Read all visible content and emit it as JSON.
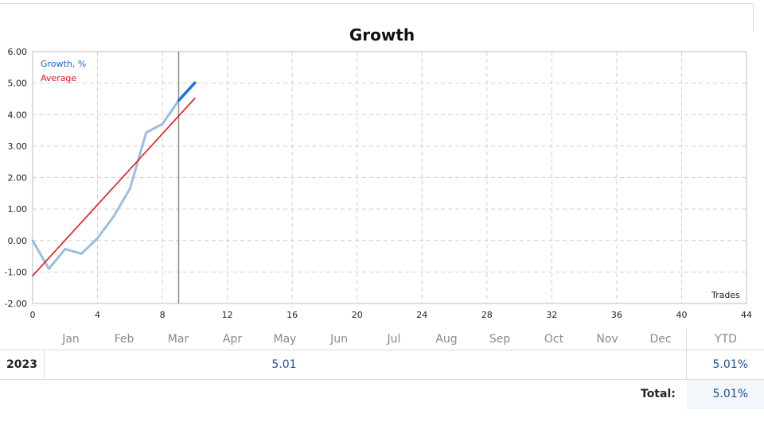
{
  "chart_data": {
    "type": "line",
    "title": "Growth",
    "xlabel": "Trades",
    "ylabel": "",
    "xlim": [
      0,
      44
    ],
    "ylim": [
      -2,
      6
    ],
    "x_ticks": [
      "0",
      "4",
      "8",
      "12",
      "16",
      "20",
      "24",
      "28",
      "32",
      "36",
      "40",
      "44"
    ],
    "y_ticks": [
      "-2.00",
      "-1.00",
      "0.00",
      "1.00",
      "2.00",
      "3.00",
      "4.00",
      "5.00",
      "6.00"
    ],
    "grid": true,
    "legend": "top-left",
    "series": [
      {
        "name": "Growth, %",
        "color": "#9dbde0",
        "x": [
          0,
          1,
          2,
          3,
          4,
          5,
          6,
          7,
          8,
          9
        ],
        "y": [
          0.0,
          -0.9,
          -0.27,
          -0.42,
          0.07,
          0.77,
          1.65,
          3.43,
          3.7,
          4.45
        ]
      },
      {
        "name": "Growth, %",
        "color": "#1a73e8",
        "x": [
          9,
          10
        ],
        "y": [
          4.45,
          5.01
        ]
      },
      {
        "name": "Average",
        "color": "#e0191b",
        "x": [
          0,
          10
        ],
        "y": [
          -1.12,
          4.52
        ]
      }
    ],
    "markers": [
      {
        "x": 9,
        "color": "#8c8c8c"
      }
    ]
  },
  "table": {
    "months": [
      "Jan",
      "Feb",
      "Mar",
      "Apr",
      "May",
      "Jun",
      "Jul",
      "Aug",
      "Sep",
      "Oct",
      "Nov",
      "Dec"
    ],
    "ytd_header": "YTD",
    "year": "2023",
    "month_value": "5.01",
    "month_value_month": "May",
    "ytd_value": "5.01%",
    "total_label": "Total:",
    "total_value": "5.01%"
  }
}
